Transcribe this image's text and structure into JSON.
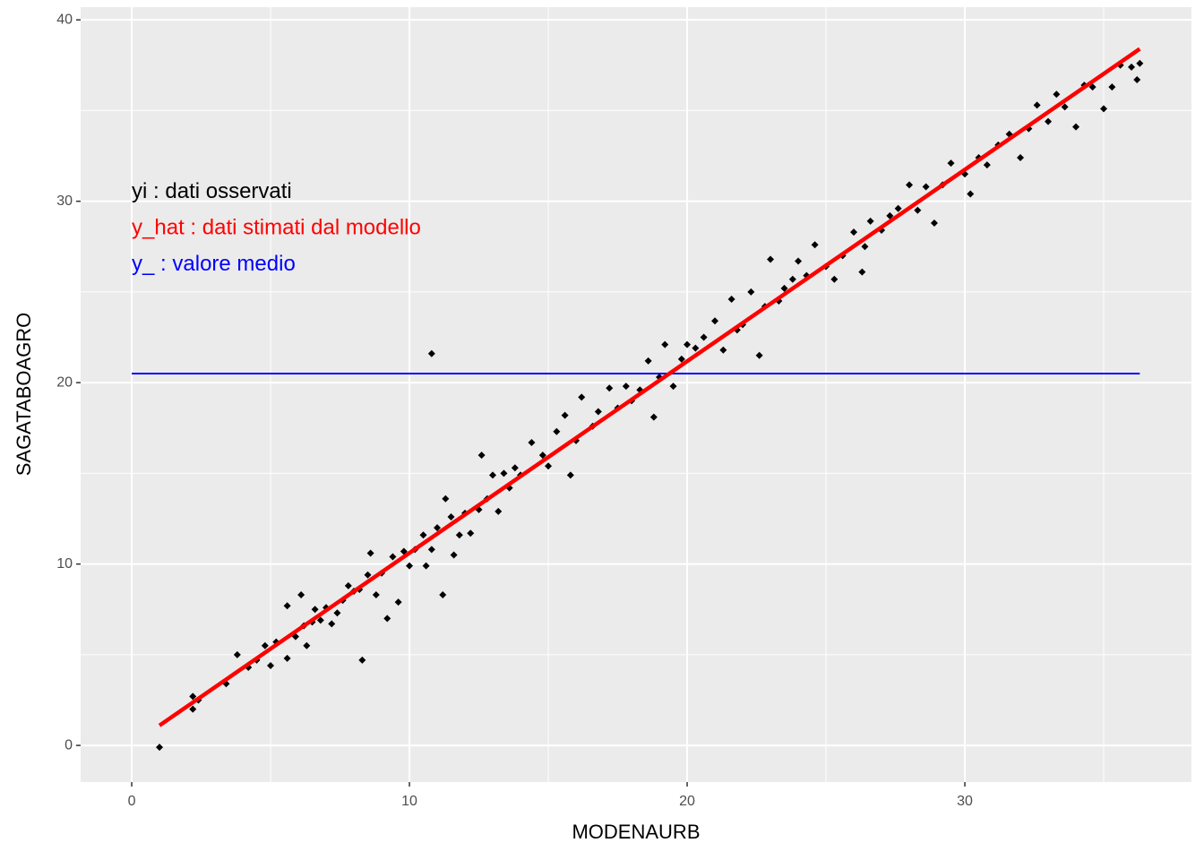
{
  "chart_data": {
    "type": "scatter",
    "xlabel": "MODENAURB",
    "ylabel": "SAGATABOAGRO",
    "xlim": [
      -1.84,
      38.16
    ],
    "ylim": [
      -2.02,
      40.7
    ],
    "xticks": [
      0,
      10,
      20,
      30
    ],
    "yticks": [
      0,
      10,
      20,
      30,
      40
    ],
    "xminor": [
      5,
      15,
      25,
      35
    ],
    "yminor": [
      5,
      15,
      25,
      35
    ],
    "grid": true,
    "color": "#000000",
    "x": [
      1.0,
      2.2,
      2.2,
      2.4,
      3.4,
      3.8,
      4.2,
      4.5,
      4.8,
      5.0,
      5.2,
      5.6,
      5.6,
      5.9,
      6.1,
      6.2,
      6.3,
      6.5,
      6.6,
      6.8,
      7.0,
      7.2,
      7.4,
      7.6,
      7.8,
      8.0,
      8.2,
      8.3,
      8.5,
      8.6,
      8.8,
      9.0,
      9.2,
      9.4,
      9.6,
      9.8,
      10.0,
      10.2,
      10.5,
      10.6,
      10.8,
      10.8,
      11.0,
      11.2,
      11.3,
      11.5,
      11.6,
      11.8,
      12.0,
      12.2,
      12.5,
      12.6,
      12.8,
      13.0,
      13.2,
      13.4,
      13.6,
      13.8,
      14.0,
      14.4,
      14.8,
      15.0,
      15.3,
      15.6,
      15.8,
      16.0,
      16.2,
      16.6,
      16.8,
      17.2,
      17.5,
      17.8,
      18.0,
      18.3,
      18.6,
      18.8,
      19.0,
      19.2,
      19.5,
      19.8,
      20.0,
      20.3,
      20.6,
      21.0,
      21.3,
      21.6,
      21.8,
      22.0,
      22.3,
      22.6,
      22.8,
      23.0,
      23.3,
      23.5,
      23.8,
      24.0,
      24.3,
      24.6,
      25.0,
      25.3,
      25.6,
      26.0,
      26.3,
      26.4,
      26.6,
      27.0,
      27.3,
      27.6,
      28.0,
      28.3,
      28.6,
      28.9,
      29.2,
      29.5,
      30.0,
      30.2,
      30.5,
      30.8,
      31.2,
      31.6,
      32.0,
      32.3,
      32.6,
      33.0,
      33.3,
      33.6,
      34.0,
      34.3,
      34.6,
      35.0,
      35.3,
      35.6,
      36.0,
      36.2,
      36.3
    ],
    "values": [
      -0.1,
      2.7,
      2.0,
      2.5,
      3.4,
      5.0,
      4.3,
      4.7,
      5.5,
      4.4,
      5.7,
      7.7,
      4.8,
      6.0,
      8.3,
      6.6,
      5.5,
      6.8,
      7.5,
      6.9,
      7.6,
      6.7,
      7.3,
      8.0,
      8.8,
      8.5,
      8.6,
      4.7,
      9.4,
      10.6,
      8.3,
      9.5,
      7.0,
      10.4,
      7.9,
      10.7,
      9.9,
      10.8,
      11.6,
      9.9,
      21.6,
      10.8,
      12.0,
      8.3,
      13.6,
      12.6,
      10.5,
      11.6,
      12.8,
      11.7,
      13.0,
      16.0,
      13.6,
      14.9,
      12.9,
      15.0,
      14.2,
      15.3,
      14.9,
      16.7,
      16.0,
      15.4,
      17.3,
      18.2,
      14.9,
      16.8,
      19.2,
      17.6,
      18.4,
      19.7,
      18.6,
      19.8,
      19.0,
      19.6,
      21.2,
      18.1,
      20.3,
      22.1,
      19.8,
      21.3,
      22.1,
      21.9,
      22.5,
      23.4,
      21.8,
      24.6,
      22.9,
      23.2,
      25.0,
      21.5,
      24.2,
      26.8,
      24.5,
      25.2,
      25.7,
      26.7,
      25.9,
      27.6,
      26.4,
      25.7,
      27.0,
      28.3,
      26.1,
      27.5,
      28.9,
      28.4,
      29.2,
      29.6,
      30.9,
      29.5,
      30.8,
      28.8,
      30.9,
      32.1,
      31.5,
      30.4,
      32.4,
      32.0,
      33.1,
      33.7,
      32.4,
      34.0,
      35.3,
      34.4,
      35.9,
      35.2,
      34.1,
      36.4,
      36.3,
      35.1,
      36.3,
      37.5,
      37.4,
      36.7,
      37.6
    ],
    "fit_line": {
      "x": [
        1.0,
        36.3
      ],
      "y": [
        1.1,
        38.4
      ],
      "color": "#ff0000"
    },
    "mean_line": {
      "x": [
        0,
        36.3
      ],
      "y": 20.5,
      "color": "#0000ff"
    },
    "annotations": [
      {
        "text": "yi : dati osservati",
        "x": 0,
        "y": 30.5,
        "color": "#000000"
      },
      {
        "text": "y_hat : dati stimati dal modello",
        "x": 0,
        "y": 28.5,
        "color": "#ff0000"
      },
      {
        "text": "y_ : valore medio",
        "x": 0,
        "y": 26.5,
        "color": "#0000ff"
      }
    ]
  }
}
